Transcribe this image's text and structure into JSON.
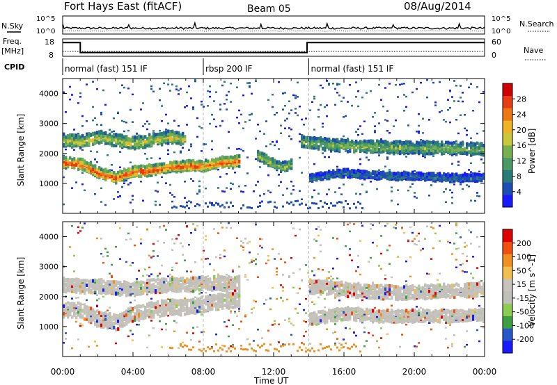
{
  "header": {
    "title": "Fort Hays East (fitACF)",
    "beam": "Beam 05",
    "date": "08/Aug/2014"
  },
  "aux_panels": {
    "nsky_label": "N.Sky",
    "nsky_ticks": [
      "10^5",
      "10^0"
    ],
    "nsearch_label": "N.Search",
    "nsearch_ticks": [
      "10^5",
      "10^0"
    ],
    "freq_label": "Freq.",
    "freq_unit": "[MHz]",
    "freq_ticks": [
      "18",
      "8"
    ],
    "nave_label": "Nave",
    "nave_ticks": [
      "60",
      "0"
    ],
    "cpid_label": "CPID",
    "cpid_segments": [
      {
        "label": "normal (fast) 151 IF",
        "start_h": 0,
        "end_h": 8
      },
      {
        "label": "rbsp 200 IF",
        "start_h": 8,
        "end_h": 14
      },
      {
        "label": "normal (fast) 151 IF",
        "start_h": 14,
        "end_h": 24
      }
    ],
    "freq_steps": [
      {
        "start_h": 0,
        "end_h": 1,
        "value": 0.85
      },
      {
        "start_h": 1,
        "end_h": 13.9,
        "value": 0.2
      },
      {
        "start_h": 13.9,
        "end_h": 24,
        "value": 0.85
      }
    ]
  },
  "colors": {
    "power_scale": [
      "#1a1aff",
      "#1e4db3",
      "#2a7a7a",
      "#4d9966",
      "#78b050",
      "#c8c83c",
      "#f0b428",
      "#f07814",
      "#e83c14",
      "#d00000"
    ],
    "velocity_scale": [
      "#1a1aff",
      "#2855c8",
      "#3ca040",
      "#8ccc50",
      "#c0c0b8",
      "#c8c4bc",
      "#f0c050",
      "#f09020",
      "#f05010",
      "#e00000"
    ]
  },
  "chart_data": [
    {
      "type": "heatmap",
      "name": "power",
      "xlabel": "",
      "ylabel": "Slant Range [km]",
      "x_range_hours": [
        0,
        24
      ],
      "ylim": [
        0,
        4500
      ],
      "y_ticks": [
        "4000",
        "3000",
        "2000",
        "1000"
      ],
      "colorbar_label": "Power [dB]",
      "colorbar_ticks": [
        "28",
        "24",
        "20",
        "16",
        "12",
        "8",
        "4"
      ],
      "bands": [
        {
          "x": [
            0,
            1,
            2,
            3,
            4,
            5,
            6,
            7,
            8,
            9,
            10
          ],
          "center": [
            1750,
            1700,
            1400,
            1250,
            1450,
            1500,
            1600,
            1650,
            1650,
            1750,
            1800
          ],
          "width": 300,
          "level": 0.7
        },
        {
          "x": [
            0,
            1,
            2,
            3,
            4,
            5,
            6,
            7
          ],
          "center": [
            2500,
            2450,
            2600,
            2500,
            2400,
            2500,
            2600,
            2550
          ],
          "width": 350,
          "level": 0.45
        },
        {
          "x": [
            11,
            12,
            12.5,
            13
          ],
          "center": [
            2000,
            1700,
            1600,
            1700
          ],
          "width": 250,
          "level": 0.4
        },
        {
          "x": [
            13.5,
            15,
            17,
            19,
            21,
            23,
            24
          ],
          "center": [
            2450,
            2350,
            2300,
            2250,
            2250,
            2200,
            2200
          ],
          "width": 350,
          "level": 0.35
        },
        {
          "x": [
            14,
            16,
            18,
            20,
            22,
            24
          ],
          "center": [
            1250,
            1400,
            1300,
            1300,
            1250,
            1250
          ],
          "width": 200,
          "level": 0.15
        }
      ]
    },
    {
      "type": "heatmap",
      "name": "velocity",
      "xlabel": "Time UT",
      "ylabel": "Slant Range [km]",
      "x_range_hours": [
        0,
        24
      ],
      "x_ticks": [
        "00:00",
        "04:00",
        "08:00",
        "12:00",
        "16:00",
        "20:00",
        "00:00"
      ],
      "ylim": [
        0,
        4500
      ],
      "y_ticks": [
        "4000",
        "3000",
        "2000",
        "1000"
      ],
      "colorbar_label": "Velocity [m s^-1]",
      "colorbar_ticks": [
        "200",
        "100",
        "50",
        "15",
        "-15",
        "-50",
        "-100",
        "-200"
      ],
      "bands": [
        {
          "x": [
            0,
            1,
            2,
            3,
            4,
            5,
            6,
            7,
            8,
            9,
            10
          ],
          "center": [
            1600,
            1600,
            1300,
            1200,
            1500,
            1600,
            1700,
            1700,
            1800,
            1900,
            1950
          ],
          "width": 450,
          "level": 0.5
        },
        {
          "x": [
            0,
            1,
            2,
            3,
            4,
            5,
            6,
            7,
            8,
            9,
            10
          ],
          "center": [
            2450,
            2400,
            2400,
            2350,
            2300,
            2400,
            2450,
            2450,
            2500,
            2500,
            2500
          ],
          "width": 400,
          "level": 0.5
        },
        {
          "x": [
            14,
            16,
            18,
            20,
            22,
            24
          ],
          "center": [
            2400,
            2300,
            2200,
            2200,
            2250,
            2300
          ],
          "width": 400,
          "level": 0.5
        },
        {
          "x": [
            14,
            16,
            18,
            20,
            22,
            24
          ],
          "center": [
            1300,
            1500,
            1400,
            1400,
            1400,
            1450
          ],
          "width": 350,
          "level": 0.5
        }
      ]
    }
  ]
}
